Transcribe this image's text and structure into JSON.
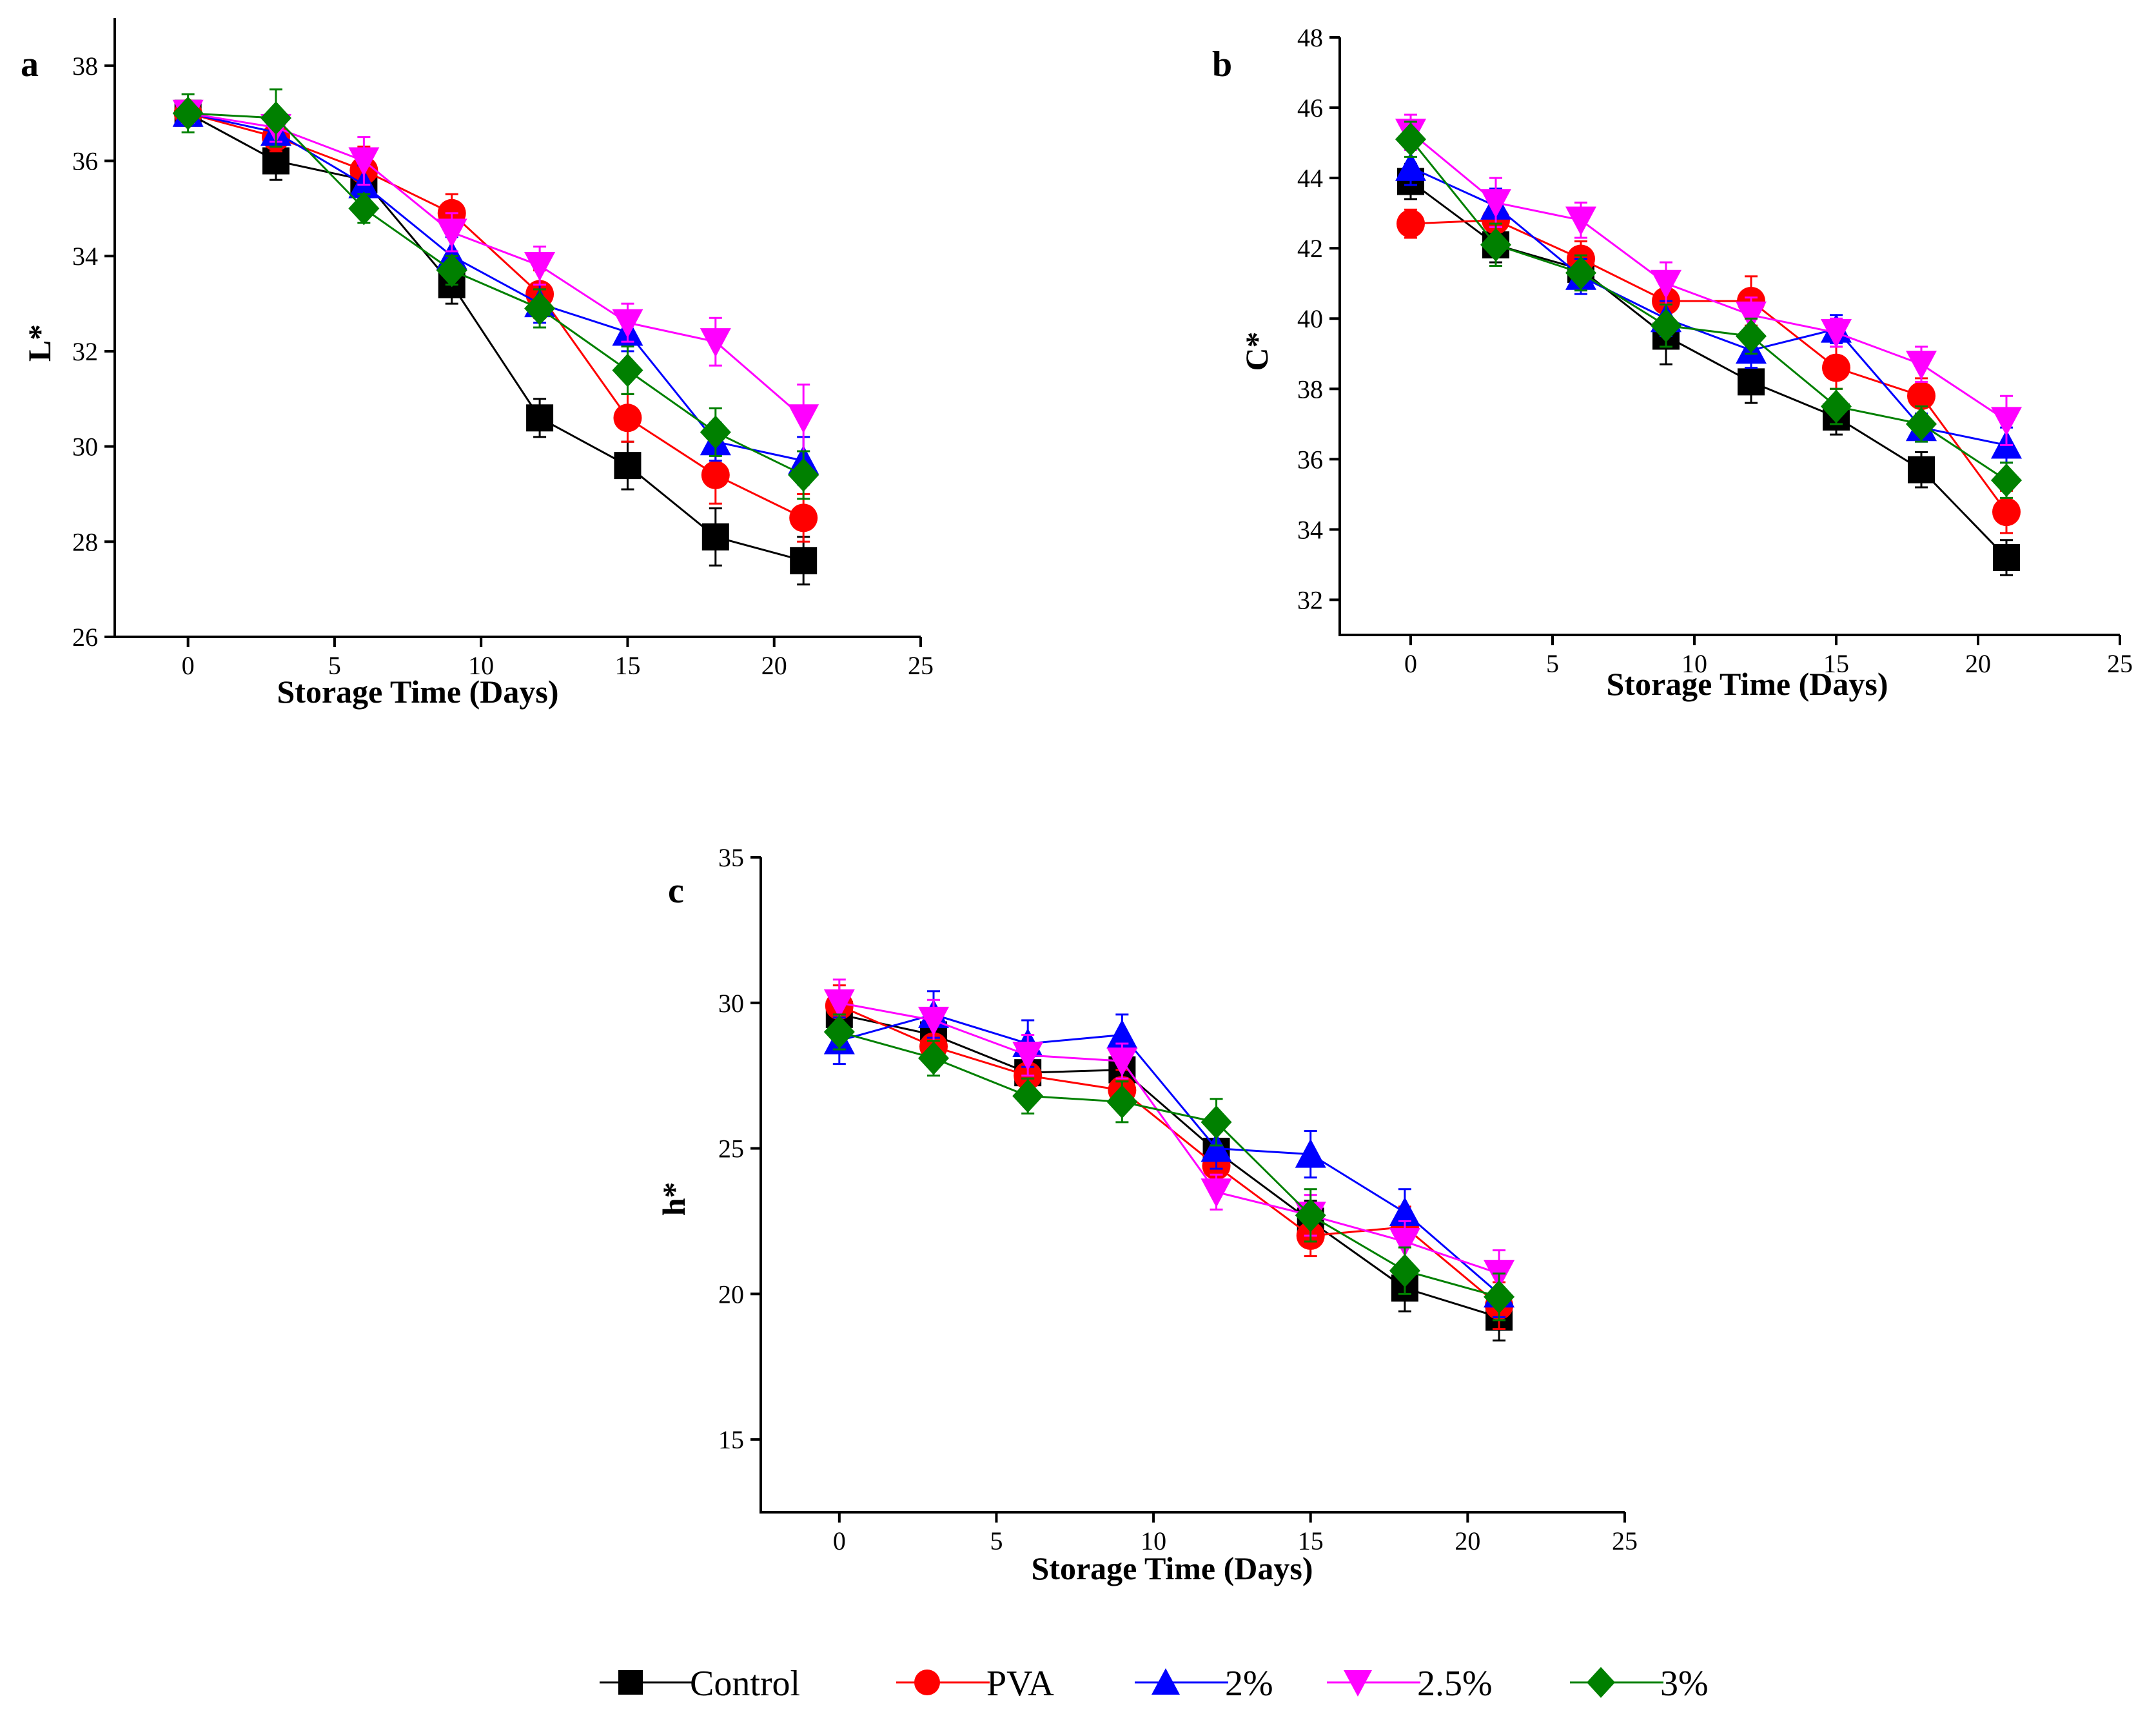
{
  "chart_data": [
    {
      "type": "line",
      "panel": "a",
      "xlabel": "Storage Time (Days)",
      "ylabel": "L*",
      "xlim": [
        -2.5,
        25
      ],
      "ylim": [
        26,
        39
      ],
      "xticks": [
        0,
        5,
        10,
        15,
        20,
        25
      ],
      "yticks": [
        26,
        28,
        30,
        32,
        34,
        36,
        38
      ],
      "x": [
        0,
        3,
        6,
        9,
        12,
        15,
        18,
        21
      ],
      "series": [
        {
          "name": "Control",
          "values": [
            37.0,
            36.0,
            35.6,
            33.4,
            30.6,
            29.6,
            28.1,
            27.6
          ],
          "errors": [
            0.2,
            0.4,
            0.4,
            0.4,
            0.4,
            0.5,
            0.6,
            0.5
          ]
        },
        {
          "name": "PVA",
          "values": [
            37.0,
            36.5,
            35.8,
            34.9,
            33.2,
            30.6,
            29.4,
            28.5
          ],
          "errors": [
            0.2,
            0.3,
            0.5,
            0.4,
            0.5,
            0.5,
            0.6,
            0.5
          ]
        },
        {
          "name": "2%",
          "values": [
            37.0,
            36.6,
            35.5,
            34.0,
            33.0,
            32.4,
            30.1,
            29.7
          ],
          "errors": [
            0.2,
            0.3,
            0.4,
            0.4,
            0.4,
            0.4,
            0.4,
            0.5
          ]
        },
        {
          "name": "2.5%",
          "values": [
            37.0,
            36.7,
            36.0,
            34.5,
            33.8,
            32.6,
            32.2,
            30.6
          ],
          "errors": [
            0.2,
            0.3,
            0.5,
            0.4,
            0.4,
            0.4,
            0.5,
            0.7
          ]
        },
        {
          "name": "3%",
          "values": [
            37.0,
            36.9,
            35.0,
            33.7,
            32.9,
            31.6,
            30.3,
            29.4
          ],
          "errors": [
            0.4,
            0.6,
            0.3,
            0.3,
            0.4,
            0.5,
            0.5,
            0.5
          ]
        }
      ]
    },
    {
      "type": "line",
      "panel": "b",
      "xlabel": "Storage Time (Days)",
      "ylabel": "C*",
      "xlim": [
        -2.5,
        25
      ],
      "ylim": [
        31,
        48
      ],
      "xticks": [
        0,
        5,
        10,
        15,
        20,
        25
      ],
      "yticks": [
        32,
        34,
        36,
        38,
        40,
        42,
        44,
        46,
        48
      ],
      "x": [
        0,
        3,
        6,
        9,
        12,
        15,
        18,
        21
      ],
      "series": [
        {
          "name": "Control",
          "values": [
            43.9,
            42.1,
            41.4,
            39.5,
            38.2,
            37.2,
            35.7,
            33.2
          ],
          "errors": [
            0.5,
            0.5,
            0.5,
            0.8,
            0.6,
            0.5,
            0.5,
            0.5
          ]
        },
        {
          "name": "PVA",
          "values": [
            42.7,
            42.8,
            41.7,
            40.5,
            40.5,
            38.6,
            37.8,
            34.5
          ],
          "errors": [
            0.4,
            0.5,
            0.5,
            0.6,
            0.7,
            0.6,
            0.5,
            0.6
          ]
        },
        {
          "name": "2%",
          "values": [
            44.3,
            43.2,
            41.2,
            40.0,
            39.1,
            39.7,
            36.9,
            36.4
          ],
          "errors": [
            0.5,
            0.5,
            0.5,
            0.5,
            0.5,
            0.4,
            0.4,
            0.5
          ]
        },
        {
          "name": "2.5%",
          "values": [
            45.3,
            43.3,
            42.8,
            41.0,
            40.1,
            39.6,
            38.7,
            37.1
          ],
          "errors": [
            0.5,
            0.7,
            0.5,
            0.6,
            0.5,
            0.4,
            0.5,
            0.7
          ]
        },
        {
          "name": "3%",
          "values": [
            45.1,
            42.1,
            41.3,
            39.8,
            39.5,
            37.5,
            37.0,
            35.4
          ],
          "errors": [
            0.5,
            0.6,
            0.5,
            0.6,
            0.5,
            0.5,
            0.5,
            0.5
          ]
        }
      ]
    },
    {
      "type": "line",
      "panel": "c",
      "xlabel": "Storage Time (Days)",
      "ylabel": "h*",
      "xlim": [
        -2.5,
        25
      ],
      "ylim": [
        12.5,
        35
      ],
      "xticks": [
        0,
        5,
        10,
        15,
        20,
        25
      ],
      "yticks": [
        15,
        20,
        25,
        30,
        35
      ],
      "x": [
        0,
        3,
        6,
        9,
        12,
        15,
        18,
        21
      ],
      "series": [
        {
          "name": "Control",
          "values": [
            29.6,
            28.9,
            27.6,
            27.7,
            24.9,
            22.5,
            20.2,
            19.2
          ],
          "errors": [
            0.7,
            0.7,
            0.7,
            0.8,
            0.7,
            0.7,
            0.8,
            0.8
          ]
        },
        {
          "name": "PVA",
          "values": [
            29.9,
            28.5,
            27.5,
            27.0,
            24.4,
            22.0,
            22.3,
            19.6
          ],
          "errors": [
            0.7,
            0.7,
            0.7,
            0.7,
            0.7,
            0.7,
            0.7,
            0.8
          ]
        },
        {
          "name": "2%",
          "values": [
            28.7,
            29.6,
            28.6,
            28.9,
            25.0,
            24.8,
            22.8,
            20.0
          ],
          "errors": [
            0.8,
            0.8,
            0.8,
            0.7,
            0.7,
            0.8,
            0.8,
            0.8
          ]
        },
        {
          "name": "2.5%",
          "values": [
            30.0,
            29.4,
            28.2,
            28.0,
            23.5,
            22.7,
            21.8,
            20.7
          ],
          "errors": [
            0.8,
            0.7,
            0.7,
            0.6,
            0.6,
            0.7,
            0.7,
            0.8
          ]
        },
        {
          "name": "3%",
          "values": [
            29.0,
            28.1,
            26.8,
            26.6,
            25.9,
            22.7,
            20.8,
            19.9
          ],
          "errors": [
            0.6,
            0.6,
            0.6,
            0.7,
            0.8,
            0.9,
            0.8,
            0.8
          ]
        }
      ]
    }
  ],
  "legend": {
    "position": "bottom-center",
    "items": [
      {
        "name": "Control",
        "color": "#000000",
        "marker": "square"
      },
      {
        "name": "PVA",
        "color": "#ff0000",
        "marker": "circle"
      },
      {
        "name": "2%",
        "color": "#0000ff",
        "marker": "triangle-up"
      },
      {
        "name": "2.5%",
        "color": "#ff00ff",
        "marker": "triangle-down"
      },
      {
        "name": "3%",
        "color": "#008000",
        "marker": "diamond"
      }
    ]
  }
}
